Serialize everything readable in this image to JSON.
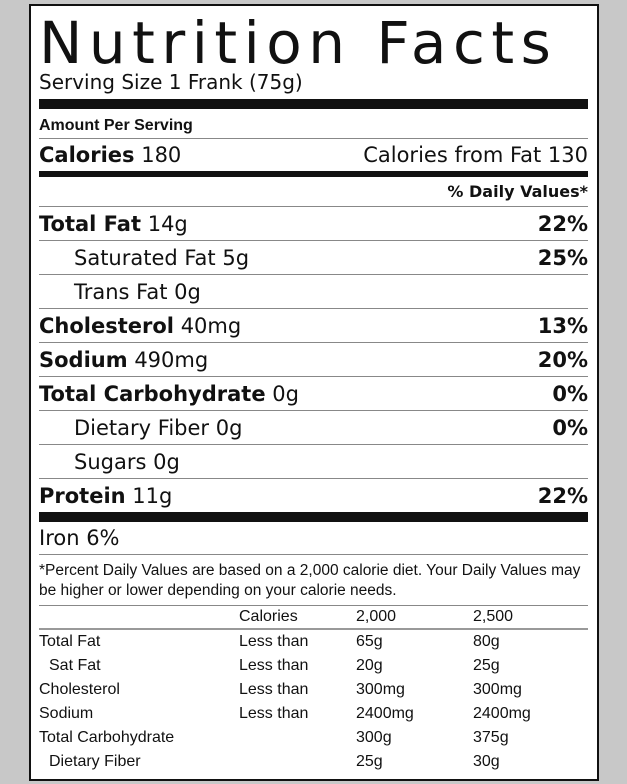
{
  "title": "Nutrition Facts",
  "serving_size": "Serving Size 1 Frank (75g)",
  "amount_per_serving": "Amount Per Serving",
  "calories": {
    "label": "Calories",
    "value": "180",
    "from_fat": "Calories from Fat 130"
  },
  "dv_header": "% Daily Values*",
  "nutrients": [
    {
      "name": "Total Fat",
      "amount": "14g",
      "dv": "22%",
      "bold": true
    },
    {
      "name": "Saturated Fat",
      "amount": "5g",
      "dv": "25%",
      "bold": false
    },
    {
      "name": "Trans Fat",
      "amount": "0g",
      "dv": "",
      "bold": false
    },
    {
      "name": "Cholesterol",
      "amount": "40mg",
      "dv": "13%",
      "bold": true
    },
    {
      "name": "Sodium",
      "amount": "490mg",
      "dv": "20%",
      "bold": true
    },
    {
      "name": "Total Carbohydrate",
      "amount": "0g",
      "dv": "0%",
      "bold": true
    },
    {
      "name": "Dietary Fiber",
      "amount": "0g",
      "dv": "0%",
      "bold": false
    },
    {
      "name": "Sugars",
      "amount": "0g",
      "dv": "",
      "bold": false
    },
    {
      "name": "Protein",
      "amount": "11g",
      "dv": "22%",
      "bold": true
    }
  ],
  "iron": "Iron 6%",
  "footnote": "*Percent Daily Values are based on a 2,000 calorie diet. Your Daily Values may be higher or lower depending on your calorie needs.",
  "footer_table": {
    "header": [
      "",
      "Calories",
      "2,000",
      "2,500"
    ],
    "rows": [
      [
        "Total Fat",
        "Less than",
        "65g",
        "80g"
      ],
      [
        "Sat Fat",
        "Less than",
        "20g",
        "25g"
      ],
      [
        "Cholesterol",
        "Less than",
        "300mg",
        "300mg"
      ],
      [
        "Sodium",
        "Less than",
        "2400mg",
        "2400mg"
      ],
      [
        "Total Carbohydrate",
        "",
        "300g",
        "375g"
      ],
      [
        "Dietary Fiber",
        "",
        "25g",
        "30g"
      ]
    ]
  }
}
